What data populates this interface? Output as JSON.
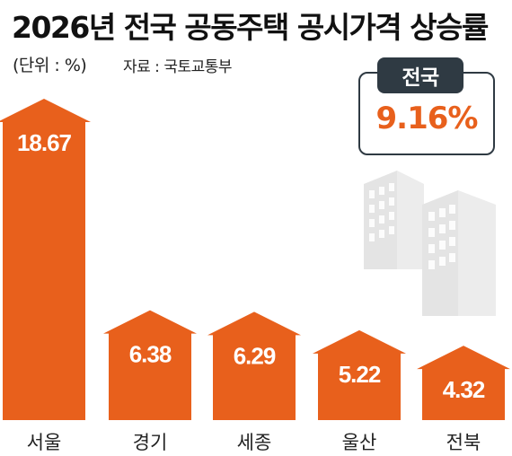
{
  "header": {
    "title": "2026년 전국 공동주택 공시가격 상승률",
    "unit": "(단위 : %)",
    "source": "자료 : 국토교통부"
  },
  "national": {
    "label": "전국",
    "value": "9.16%"
  },
  "colors": {
    "bar": "#e8601c",
    "dark": "#2f3a43"
  },
  "chart_data": {
    "type": "bar",
    "title": "2026년 전국 공동주택 공시가격 상승률",
    "categories": [
      "서울",
      "경기",
      "세종",
      "울산",
      "전북"
    ],
    "values": [
      18.67,
      6.38,
      6.29,
      5.22,
      4.32
    ],
    "value_labels": [
      "18.67",
      "6.38",
      "6.29",
      "5.22",
      "4.32"
    ],
    "ylabel": "(단위 : %)",
    "ylim": [
      0,
      18.67
    ],
    "grid": false,
    "legend": "none"
  }
}
